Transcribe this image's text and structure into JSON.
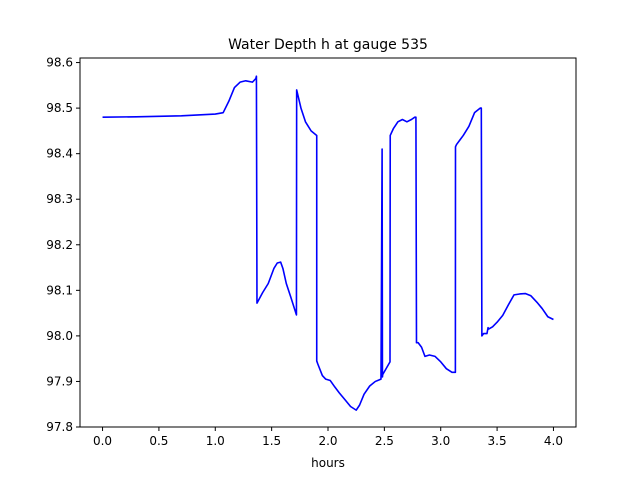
{
  "chart_data": {
    "type": "line",
    "title": "Water Depth h at gauge 535",
    "xlabel": "hours",
    "ylabel": "",
    "xlim": [
      -0.2,
      4.2
    ],
    "ylim": [
      97.8,
      98.61
    ],
    "xticks": [
      0.0,
      0.5,
      1.0,
      1.5,
      2.0,
      2.5,
      3.0,
      3.5,
      4.0
    ],
    "xtick_labels": [
      "0.0",
      "0.5",
      "1.0",
      "1.5",
      "2.0",
      "2.5",
      "3.0",
      "3.5",
      "4.0"
    ],
    "yticks": [
      97.8,
      97.9,
      98.0,
      98.1,
      98.2,
      98.3,
      98.4,
      98.5,
      98.6
    ],
    "ytick_labels": [
      "97.8",
      "97.9",
      "98.0",
      "98.1",
      "98.2",
      "98.3",
      "98.4",
      "98.5",
      "98.6"
    ],
    "grid": false,
    "series": [
      {
        "color": "#0000ff",
        "x": [
          0.0,
          0.3,
          0.7,
          1.0,
          1.07,
          1.12,
          1.17,
          1.22,
          1.27,
          1.33,
          1.36,
          1.365,
          1.37,
          1.42,
          1.47,
          1.52,
          1.55,
          1.58,
          1.6,
          1.63,
          1.67,
          1.72,
          1.722,
          1.76,
          1.8,
          1.85,
          1.9,
          1.9,
          1.91,
          1.95,
          1.98,
          2.02,
          2.06,
          2.1,
          2.15,
          2.2,
          2.25,
          2.28,
          2.32,
          2.37,
          2.42,
          2.47,
          2.48,
          2.483,
          2.485,
          2.52,
          2.55,
          2.552,
          2.58,
          2.62,
          2.66,
          2.7,
          2.74,
          2.77,
          2.78,
          2.785,
          2.8,
          2.83,
          2.86,
          2.9,
          2.95,
          3.0,
          3.05,
          3.1,
          3.13,
          3.131,
          3.14,
          3.17,
          3.2,
          3.25,
          3.3,
          3.35,
          3.36,
          3.365,
          3.38,
          3.41,
          3.42,
          3.425,
          3.46,
          3.5,
          3.55,
          3.6,
          3.65,
          3.7,
          3.75,
          3.8,
          3.83,
          3.86,
          3.9,
          3.95,
          4.0
        ],
        "values": [
          98.48,
          98.481,
          98.483,
          98.487,
          98.49,
          98.515,
          98.545,
          98.557,
          98.56,
          98.557,
          98.565,
          98.57,
          98.072,
          98.095,
          98.115,
          98.148,
          98.16,
          98.162,
          98.148,
          98.115,
          98.085,
          98.046,
          98.54,
          98.5,
          98.47,
          98.45,
          98.44,
          97.945,
          97.938,
          97.913,
          97.905,
          97.902,
          97.888,
          97.875,
          97.86,
          97.845,
          97.837,
          97.848,
          97.872,
          97.89,
          97.9,
          97.905,
          98.41,
          97.91,
          97.915,
          97.93,
          97.943,
          98.44,
          98.455,
          98.47,
          98.475,
          98.47,
          98.475,
          98.48,
          98.48,
          97.985,
          97.985,
          97.975,
          97.955,
          97.958,
          97.955,
          97.943,
          97.928,
          97.92,
          97.92,
          98.415,
          98.42,
          98.43,
          98.44,
          98.46,
          98.49,
          98.5,
          98.5,
          98.0,
          98.005,
          98.005,
          98.018,
          98.015,
          98.02,
          98.03,
          98.045,
          98.068,
          98.09,
          98.092,
          98.093,
          98.088,
          98.08,
          98.072,
          98.06,
          98.042,
          98.036
        ]
      }
    ]
  }
}
